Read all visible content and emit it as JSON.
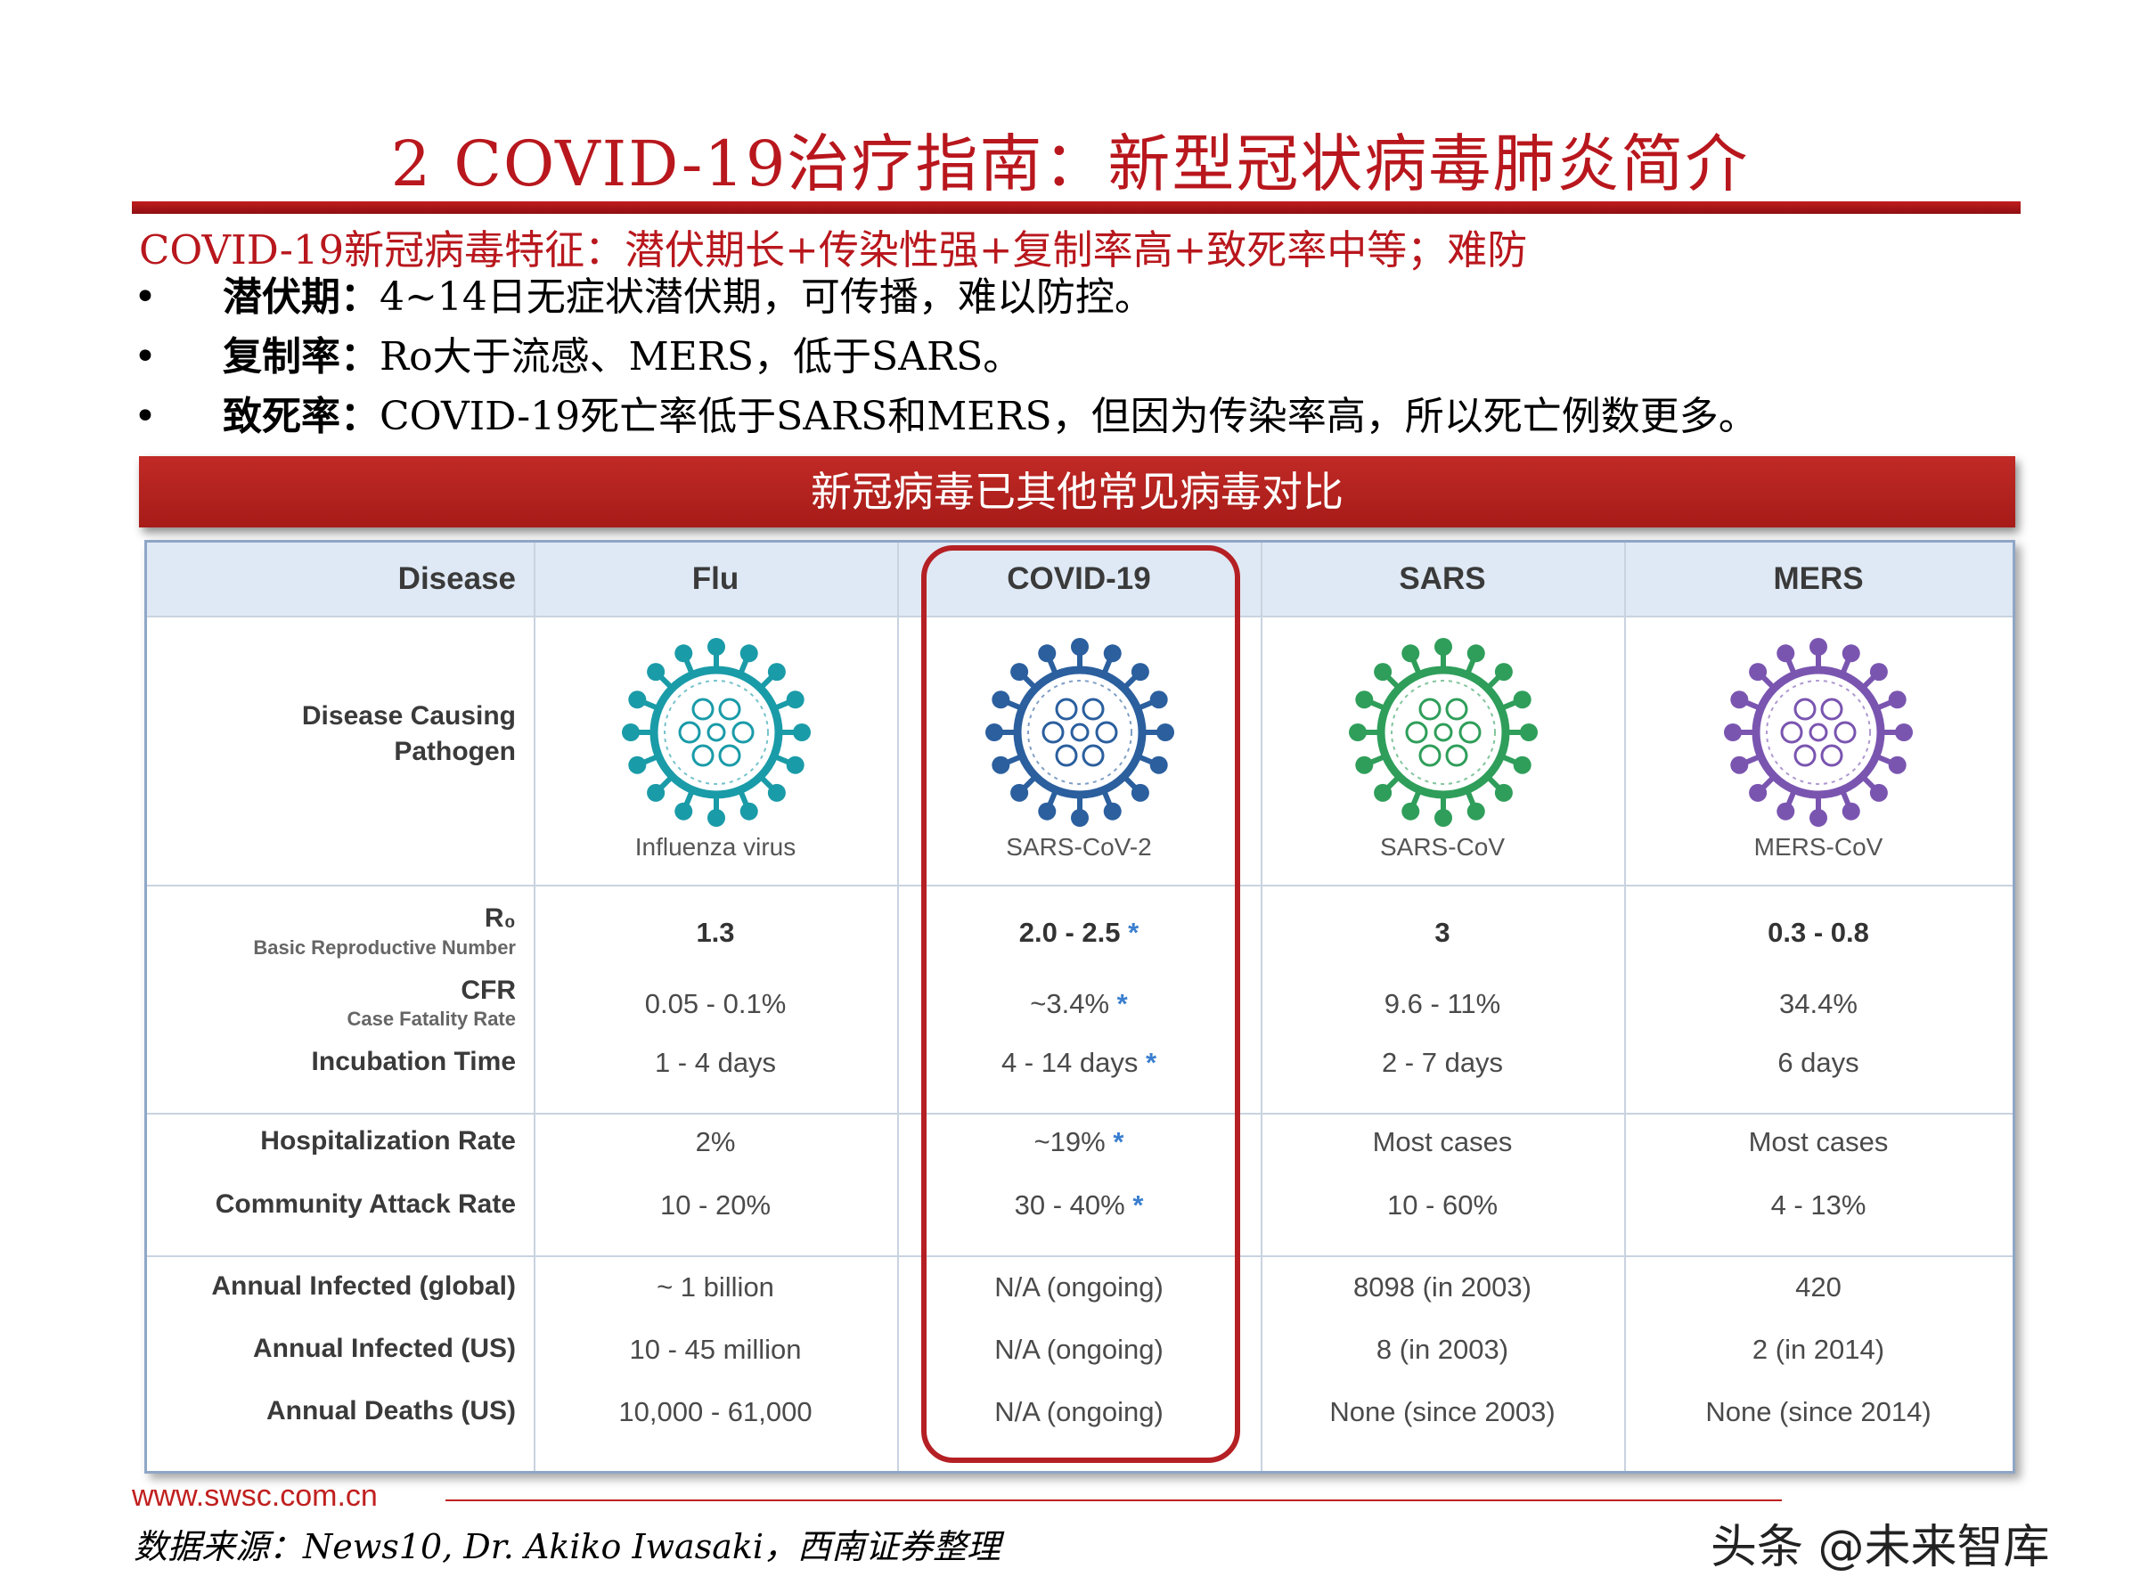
{
  "title": "2 COVID-19治疗指南：新型冠状病毒肺炎简介",
  "subtitle": "COVID-19新冠病毒特征：潜伏期长+传染性强+复制率高+致死率中等；难防",
  "bullets": [
    {
      "symbol": "•",
      "label": "潜伏期：",
      "text": "4~14日无症状潜伏期，可传播，难以防控。"
    },
    {
      "symbol": "•",
      "label": "复制率：",
      "text": "Ro大于流感、MERS，低于SARS。"
    },
    {
      "symbol": "•",
      "label": "致死率：",
      "text": "COVID-19死亡率低于SARS和MERS，但因为传染率高，所以死亡例数更多。"
    }
  ],
  "banner": "新冠病毒已其他常见病毒对比",
  "table": {
    "headers": [
      "Disease",
      "Flu",
      "COVID-19",
      "SARS",
      "MERS"
    ],
    "pathogen_label_1": "Disease Causing",
    "pathogen_label_2": "Pathogen",
    "pathogens": [
      "Influenza virus",
      "SARS-CoV-2",
      "SARS-CoV",
      "MERS-CoV"
    ],
    "r0_label": "R₀",
    "r0_sub": "Basic Reproductive Number",
    "cfr_label": "CFR",
    "cfr_sub": "Case Fatality Rate",
    "incubation_label": "Incubation Time",
    "hosp_label": "Hospitalization Rate",
    "attack_label": "Community Attack Rate",
    "inf_global_label": "Annual Infected (global)",
    "inf_us_label": "Annual Infected (US)",
    "deaths_label": "Annual Deaths (US)",
    "asterisk": "*",
    "flu": {
      "r0": "1.3",
      "cfr": "0.05 - 0.1%",
      "incubation": "1 - 4 days",
      "hosp": "2%",
      "attack": "10 - 20%",
      "inf_global": "~ 1 billion",
      "inf_us": "10 - 45 million",
      "deaths": "10,000 - 61,000"
    },
    "covid": {
      "r0": "2.0 - 2.5",
      "cfr": "~3.4%",
      "incubation": "4 - 14 days",
      "hosp": "~19%",
      "attack": "30 - 40%",
      "inf_global": "N/A (ongoing)",
      "inf_us": "N/A (ongoing)",
      "deaths": "N/A (ongoing)"
    },
    "sars": {
      "r0": "3",
      "cfr": "9.6 - 11%",
      "incubation": "2 - 7 days",
      "hosp": "Most cases",
      "attack": "10 - 60%",
      "inf_global": "8098 (in 2003)",
      "inf_us": "8 (in 2003)",
      "deaths": "None (since 2003)"
    },
    "mers": {
      "r0": "0.3 - 0.8",
      "cfr": "34.4%",
      "incubation": "6 days",
      "hosp": "Most cases",
      "attack": "4 - 13%",
      "inf_global": "420",
      "inf_us": "2 (in 2014)",
      "deaths": "None (since 2014)"
    }
  },
  "virus_colors": {
    "flu": "#1a9ba8",
    "covid": "#2b5f9e",
    "sars": "#2f9e5a",
    "mers": "#7a55b0"
  },
  "footer": {
    "url": "www.swsc.com.cn",
    "source": "数据来源：News10, Dr. Akiko Iwasaki，西南证券整理",
    "watermark": "头条 @未来智库"
  }
}
